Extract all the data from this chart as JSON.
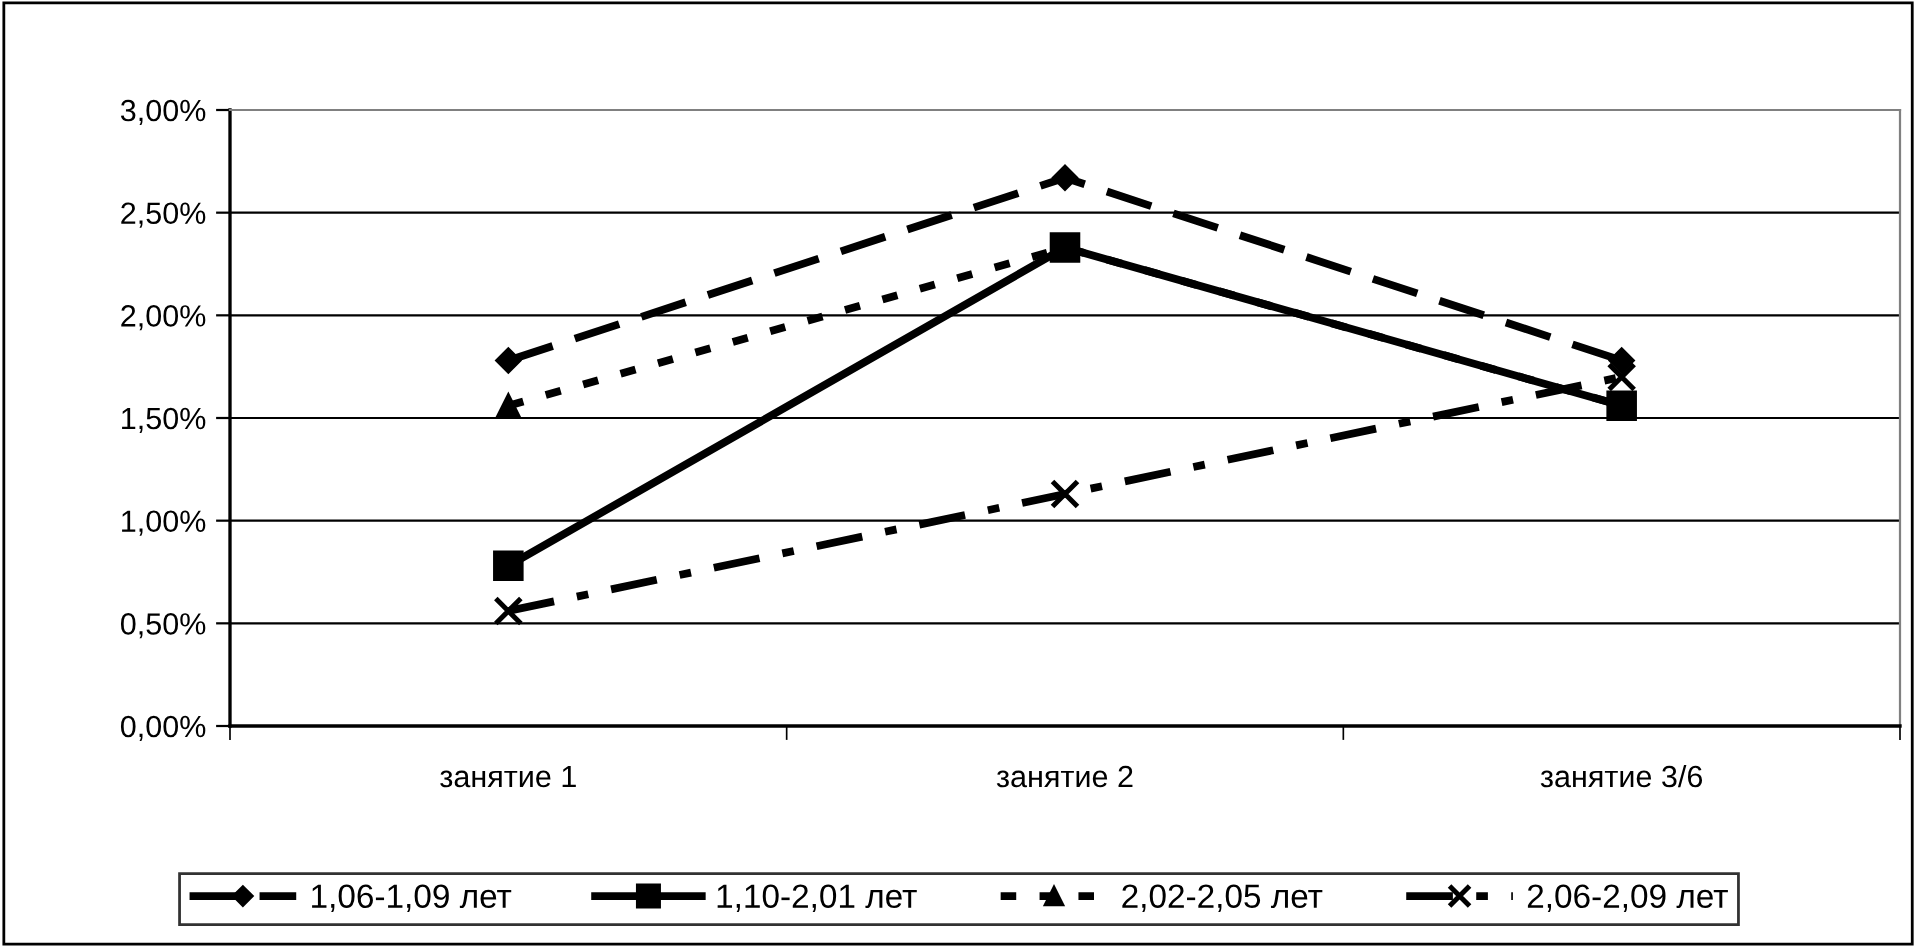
{
  "chart_data": {
    "type": "line",
    "categories": [
      "занятие 1",
      "занятие 2",
      "занятие 3/6"
    ],
    "series": [
      {
        "name": "1,06-1,09 лет",
        "color": "#000000",
        "marker": "diamond",
        "line_style": "dashed",
        "values": [
          1.78,
          2.67,
          1.78
        ]
      },
      {
        "name": "1,10-2,01 лет",
        "color": "#000000",
        "marker": "square",
        "line_style": "solid",
        "values": [
          0.78,
          2.33,
          1.56
        ]
      },
      {
        "name": "2,02-2,05 лет",
        "color": "#000000",
        "marker": "triangle",
        "line_style": "dotted",
        "values": [
          1.56,
          2.33,
          1.56
        ]
      },
      {
        "name": "2,06-2,09 лет",
        "color": "#000000",
        "marker": "cross",
        "line_style": "dashdot",
        "values": [
          0.56,
          1.13,
          1.7
        ]
      }
    ],
    "ylim": [
      0,
      3
    ],
    "yticks": [
      {
        "value": 0,
        "label": "0,00%"
      },
      {
        "value": 0.5,
        "label": "0,50%"
      },
      {
        "value": 1,
        "label": "1,00%"
      },
      {
        "value": 1.5,
        "label": "1,50%"
      },
      {
        "value": 2,
        "label": "2,00%"
      },
      {
        "value": 2.5,
        "label": "2,50%"
      },
      {
        "value": 3,
        "label": "3,00%"
      }
    ],
    "grid": "y",
    "legend": "bottom"
  }
}
